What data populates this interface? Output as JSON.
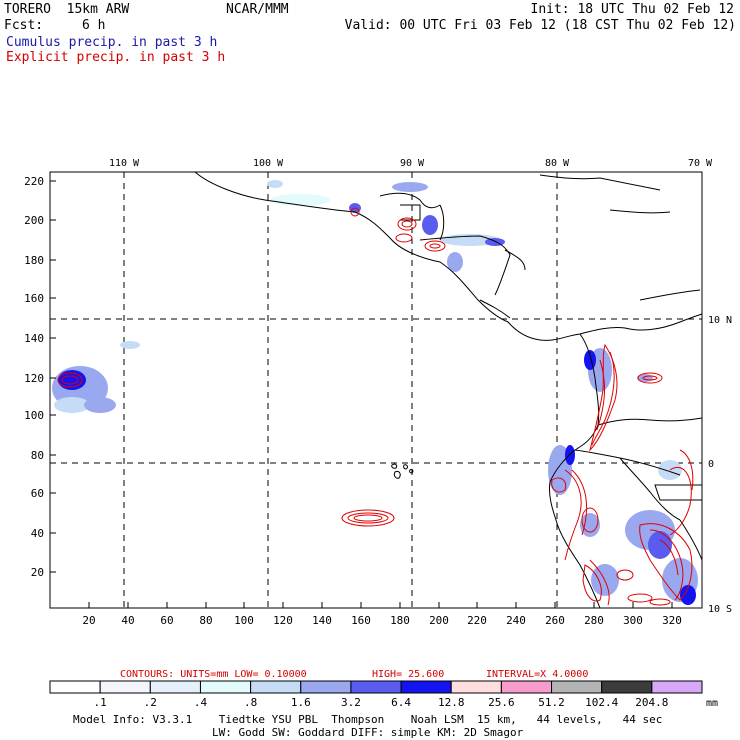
{
  "header": {
    "model": "TORERO  15km ARW",
    "org": "NCAR/MMM",
    "init": "Init: 18 UTC Thu 02 Feb 12",
    "fcst_label": "Fcst:",
    "fcst_value": "6 h",
    "valid": "Valid: 00 UTC Fri 03 Feb 12 (18 CST Thu 02 Feb 12)",
    "cumulus": "Cumulus precip. in past 3 h",
    "explicit": "Explicit precip. in past 3 h"
  },
  "colors": {
    "cumulus_text": "#1a1aa6",
    "explicit_text": "#d40000",
    "contour": "#e00000",
    "coast": "#000000"
  },
  "map": {
    "lon_labels": [
      "110 W",
      "100 W",
      "90 W",
      "80 W",
      "70 W"
    ],
    "lat_labels": [
      "10 N",
      "0",
      "10 S"
    ],
    "y_ticks": [
      "220",
      "200",
      "180",
      "160",
      "140",
      "120",
      "100",
      "80",
      "60",
      "40",
      "20"
    ],
    "x_ticks": [
      "20",
      "40",
      "60",
      "80",
      "100",
      "120",
      "140",
      "160",
      "180",
      "200",
      "220",
      "240",
      "260",
      "280",
      "300",
      "320"
    ],
    "x_range": [
      0,
      335
    ],
    "y_range": [
      0,
      225
    ]
  },
  "contour_info": {
    "label": "CONTOURS:  UNITS=mm  LOW= 0.10000",
    "high": "HIGH=  25.600",
    "interval": "INTERVAL=X  4.0000"
  },
  "colorbar": {
    "labels": [
      ".1",
      ".2",
      ".4",
      ".8",
      "1.6",
      "3.2",
      "6.4",
      "12.8",
      "25.6",
      "51.2",
      "102.4",
      "204.8"
    ],
    "unit": "mm",
    "colors": [
      "#ffffff",
      "#f2f6fb",
      "#e6f0fa",
      "#e4fbfb",
      "#c6dcf6",
      "#9aa8f0",
      "#5a5cf0",
      "#1414f0",
      "#ffdede",
      "#f79ccc",
      "#b4b4b4",
      "#3c3c3c",
      "#d8a8f8"
    ]
  },
  "footer": {
    "line1": "Model Info: V3.3.1    Tiedtke YSU PBL  Thompson    Noah LSM  15 km,   44 levels,   44 sec",
    "line2": "LW: Godd SW: Goddard DIFF: simple KM: 2D Smagor"
  }
}
